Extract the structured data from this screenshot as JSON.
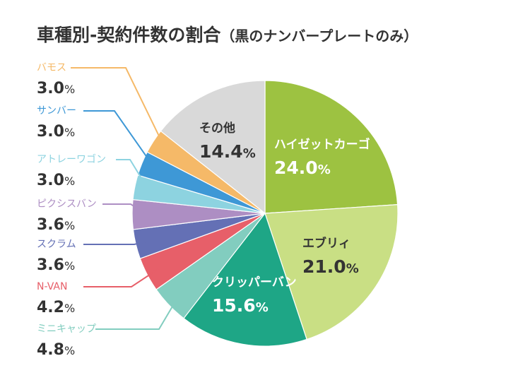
{
  "chart_data": {
    "type": "pie",
    "title": "車種別-契約件数の割合",
    "subtitle": "（黒のナンバープレートのみ）",
    "percent_sign": "%",
    "slices": [
      {
        "name": "ハイゼットカーゴ",
        "value": 24.0,
        "value_text": "24.0",
        "color": "#9dc241",
        "text_color": "#ffffff",
        "label": "inside"
      },
      {
        "name": "エブリィ",
        "value": 21.0,
        "value_text": "21.0",
        "color": "#c9df84",
        "text_color": "#333333",
        "label": "inside"
      },
      {
        "name": "クリッパーバン",
        "value": 15.6,
        "value_text": "15.6",
        "color": "#1ea686",
        "text_color": "#ffffff",
        "label": "inside"
      },
      {
        "name": "ミニキャップ",
        "value": 4.8,
        "value_text": "4.8",
        "color": "#82cdbf",
        "text_color": "#82cdbf",
        "label": "outside"
      },
      {
        "name": "N-VAN",
        "value": 4.2,
        "value_text": "4.2",
        "color": "#e75f69",
        "text_color": "#e75f69",
        "label": "outside"
      },
      {
        "name": "スクラム",
        "value": 3.6,
        "value_text": "3.6",
        "color": "#6470b5",
        "text_color": "#6470b5",
        "label": "outside"
      },
      {
        "name": "ピクシスバン",
        "value": 3.6,
        "value_text": "3.6",
        "color": "#ad8ec3",
        "text_color": "#ad8ec3",
        "label": "outside"
      },
      {
        "name": "アトレーワゴン",
        "value": 3.0,
        "value_text": "3.0",
        "color": "#8dd3e0",
        "text_color": "#8dd3e0",
        "label": "outside"
      },
      {
        "name": "サンバー",
        "value": 3.0,
        "value_text": "3.0",
        "color": "#3e98d6",
        "text_color": "#3e98d6",
        "label": "outside"
      },
      {
        "name": "バモス",
        "value": 3.0,
        "value_text": "3.0",
        "color": "#f5b968",
        "text_color": "#f5b968",
        "label": "outside"
      },
      {
        "name": "その他",
        "value": 14.4,
        "value_text": "14.4",
        "color": "#d9d9d9",
        "text_color": "#333333",
        "label": "inside"
      }
    ]
  }
}
